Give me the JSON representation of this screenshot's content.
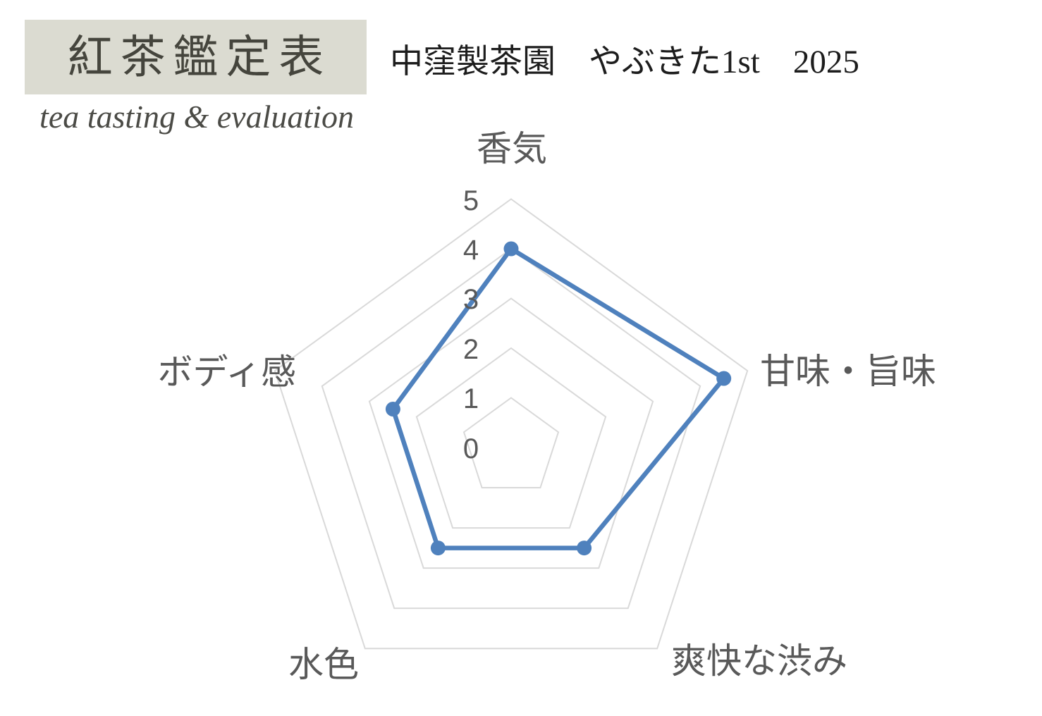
{
  "logo": {
    "title": "紅茶鑑定表",
    "subtitle": "tea tasting & evaluation"
  },
  "header": {
    "sample_title": "中窪製茶園　やぶきた1st　2025"
  },
  "chart_data": {
    "type": "radar",
    "title": "中窪製茶園　やぶきた1st　2025",
    "categories": [
      "香気",
      "甘味・旨味",
      "爽快な渋み",
      "水色",
      "ボディ感"
    ],
    "values": [
      4,
      4.5,
      2.5,
      2.5,
      2.5
    ],
    "ticks": [
      0,
      1,
      2,
      3,
      4,
      5
    ],
    "rmin": 0,
    "rmax": 5,
    "grid": true,
    "spokes": false,
    "legend": "none",
    "colors": {
      "series": "#4F81BD",
      "grid": "#D9D9D9",
      "labels": "#595959",
      "logo_background": "#DBDBD1",
      "logo_text": "#45453D"
    }
  }
}
